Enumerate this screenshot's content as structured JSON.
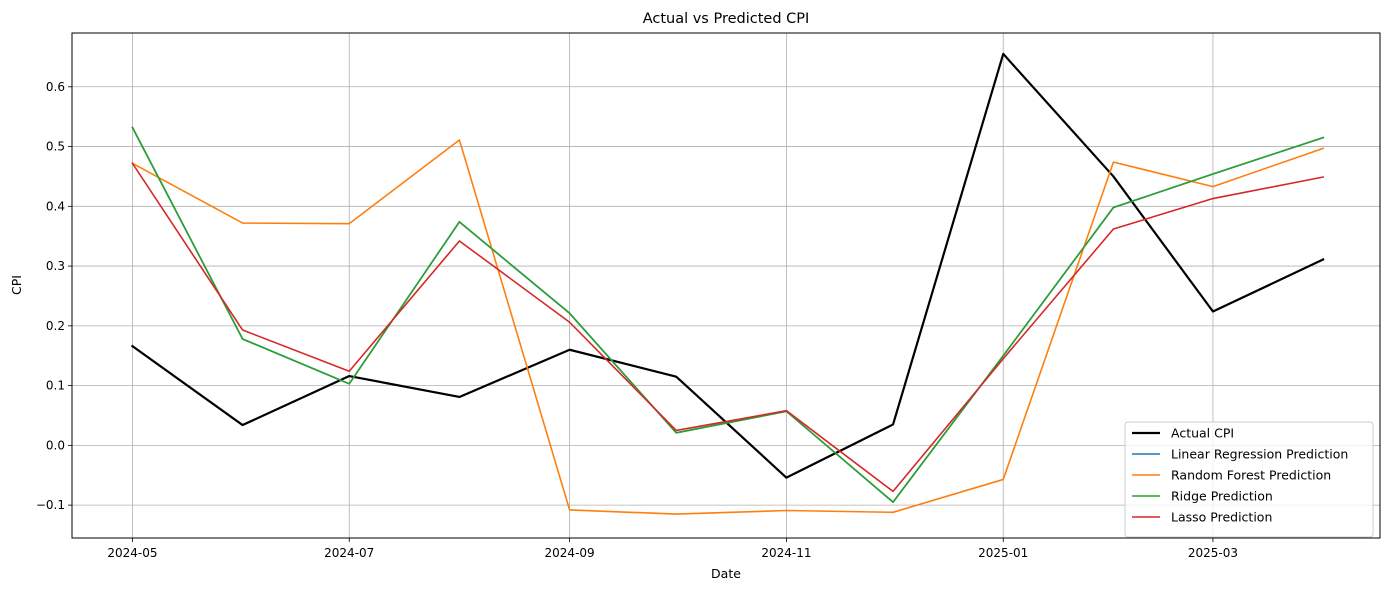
{
  "chart_data": {
    "type": "line",
    "title": "Actual vs Predicted CPI",
    "xlabel": "Date",
    "ylabel": "CPI",
    "x": [
      "2024-05",
      "2024-06",
      "2024-07",
      "2024-08",
      "2024-09",
      "2024-10",
      "2024-11",
      "2024-12",
      "2025-01",
      "2025-02",
      "2025-03",
      "2025-04"
    ],
    "x_tick_labels": [
      "2024-05",
      "2024-07",
      "2024-09",
      "2024-11",
      "2025-01",
      "2025-03"
    ],
    "y_ticks": [
      -0.1,
      0.0,
      0.1,
      0.2,
      0.3,
      0.4,
      0.5,
      0.6
    ],
    "y_tick_labels": [
      "−0.1",
      "0.0",
      "0.1",
      "0.2",
      "0.3",
      "0.4",
      "0.5",
      "0.6"
    ],
    "ylim": [
      -0.155,
      0.69
    ],
    "xlim": [
      "2024-04-14",
      "2025-04-17"
    ],
    "grid": true,
    "legend_position": "bottom-right",
    "series": [
      {
        "name": "Actual CPI",
        "color": "#000000",
        "width": 2.2,
        "values": [
          0.166,
          0.034,
          0.116,
          0.081,
          0.16,
          0.115,
          -0.054,
          0.035,
          0.655,
          0.45,
          0.224,
          0.311
        ]
      },
      {
        "name": "Linear Regression Prediction",
        "color": "#1f77b4",
        "width": 1.6,
        "values": [
          0.532,
          0.178,
          0.103,
          0.374,
          0.221,
          0.021,
          0.057,
          -0.095,
          0.15,
          0.398,
          0.454,
          0.515
        ]
      },
      {
        "name": "Random Forest Prediction",
        "color": "#ff7f0e",
        "width": 1.6,
        "values": [
          0.472,
          0.372,
          0.371,
          0.511,
          -0.108,
          -0.115,
          -0.109,
          -0.112,
          -0.057,
          0.474,
          0.433,
          0.497
        ]
      },
      {
        "name": "Ridge Prediction",
        "color": "#2ca02c",
        "width": 1.6,
        "values": [
          0.532,
          0.178,
          0.103,
          0.374,
          0.221,
          0.021,
          0.057,
          -0.095,
          0.15,
          0.398,
          0.454,
          0.515
        ]
      },
      {
        "name": "Lasso Prediction",
        "color": "#d62728",
        "width": 1.6,
        "values": [
          0.472,
          0.193,
          0.124,
          0.342,
          0.206,
          0.025,
          0.058,
          -0.077,
          0.145,
          0.362,
          0.413,
          0.449
        ]
      }
    ]
  }
}
